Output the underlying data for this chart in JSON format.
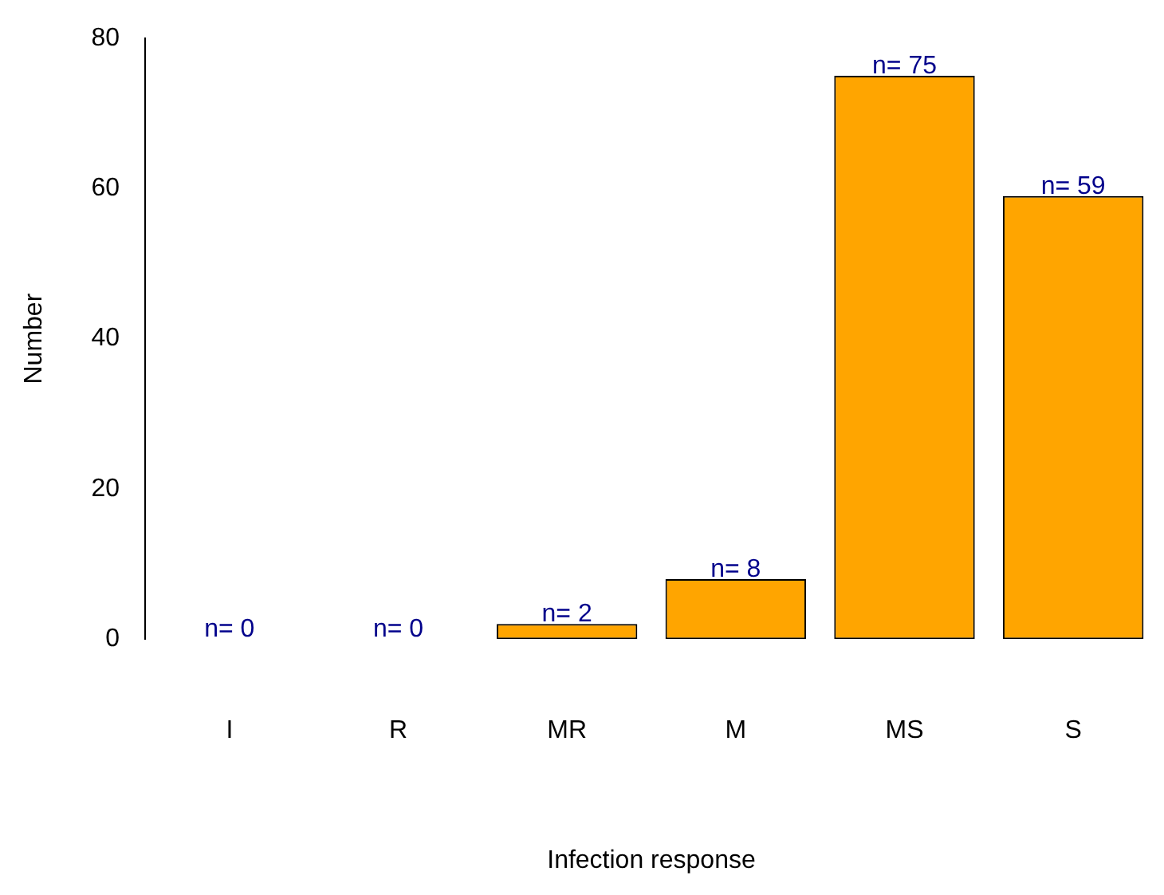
{
  "chart_data": {
    "type": "bar",
    "xlabel": "Infection response",
    "ylabel": "Number",
    "categories": [
      "I",
      "R",
      "MR",
      "M",
      "MS",
      "S"
    ],
    "values": [
      0,
      0,
      2,
      8,
      75,
      59
    ],
    "value_labels": [
      "n= 0",
      "n= 0",
      "n= 2",
      "n= 8",
      "n= 75",
      "n= 59"
    ],
    "color": "#ffa500",
    "ylim": [
      0,
      80
    ],
    "yticks": [
      0,
      20,
      40,
      60,
      80
    ],
    "grid": false,
    "legend": false
  }
}
